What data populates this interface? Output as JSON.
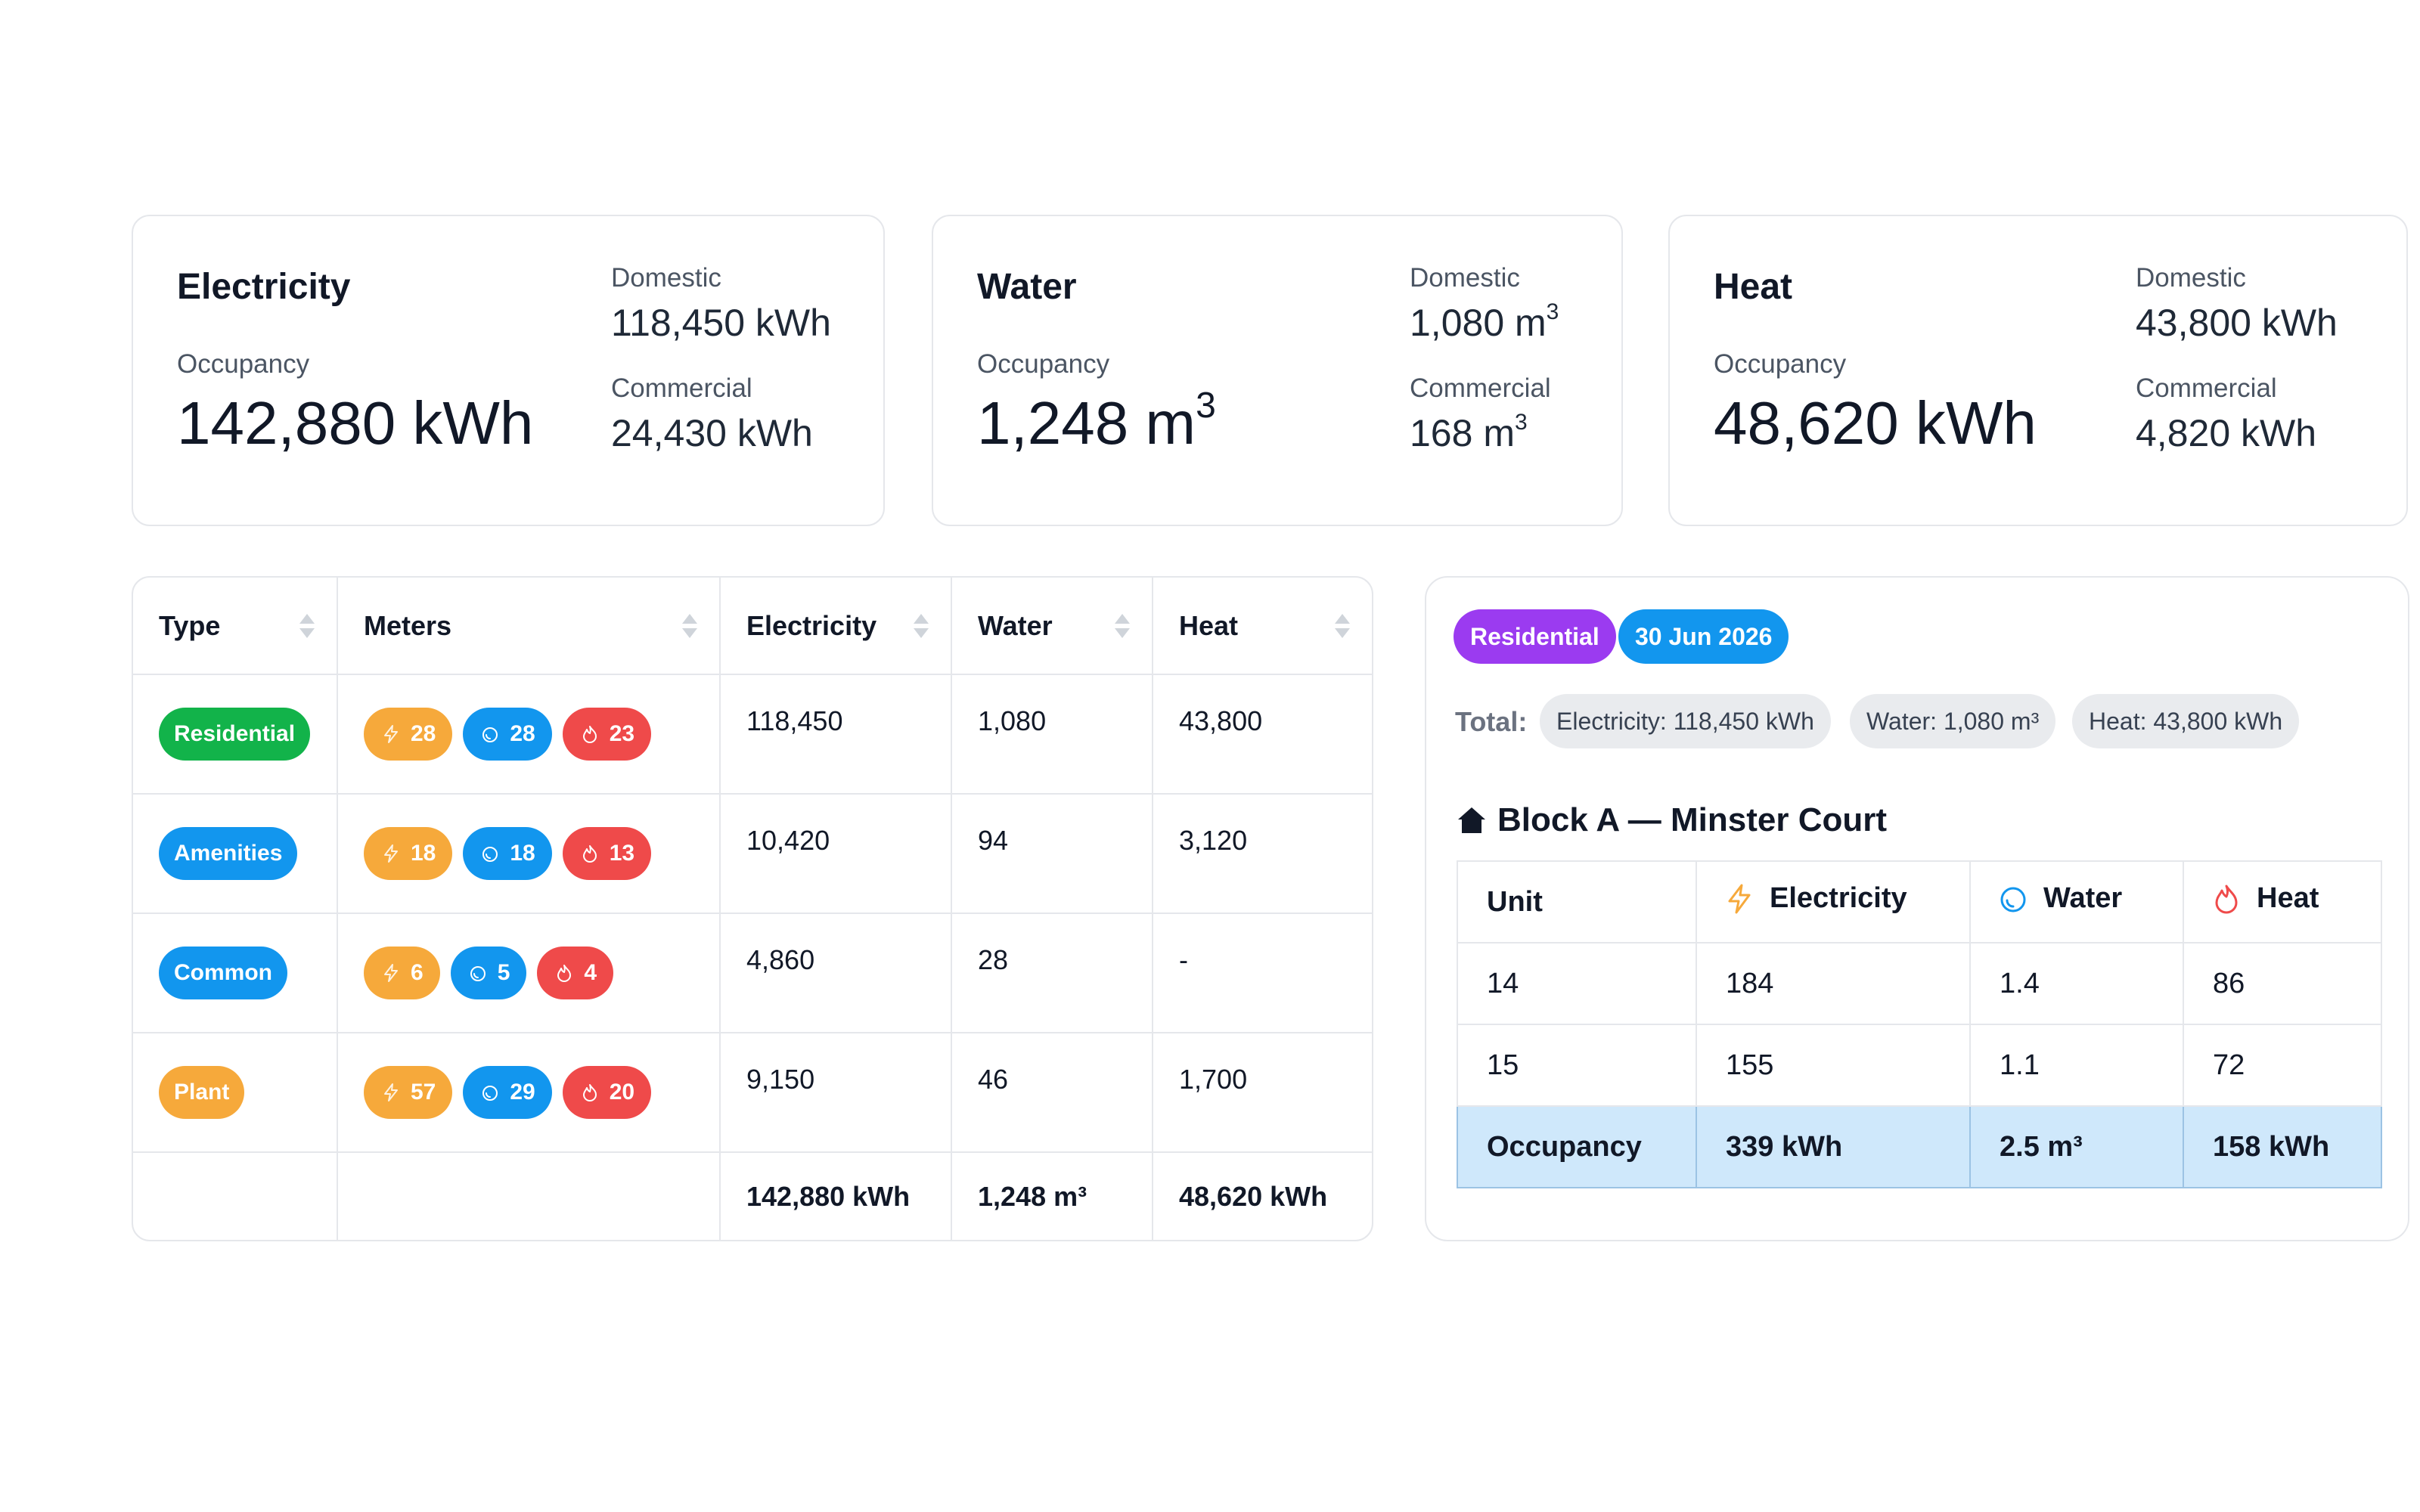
{
  "cards": {
    "electricity": {
      "title": "Electricity",
      "occupancy_label": "Occupancy",
      "occupancy_value": "142,880 kWh",
      "domestic_label": "Domestic",
      "domestic_value": "118,450 kWh",
      "commercial_label": "Commercial",
      "commercial_value": "24,430 kWh"
    },
    "water": {
      "title": "Water",
      "occupancy_label": "Occupancy",
      "occupancy_value": "1,248 m",
      "occupancy_unit_sup": "3",
      "domestic_label": "Domestic",
      "domestic_value": "1,080 m",
      "domestic_unit_sup": "3",
      "commercial_label": "Commercial",
      "commercial_value": "168 m",
      "commercial_unit_sup": "3"
    },
    "heat": {
      "title": "Heat",
      "occupancy_label": "Occupancy",
      "occupancy_value": "48,620 kWh",
      "domestic_label": "Domestic",
      "domestic_value": "43,800 kWh",
      "commercial_label": "Commercial",
      "commercial_value": "4,820 kWh"
    }
  },
  "meters_table": {
    "columns": [
      "Type",
      "Meters",
      "Electricity",
      "Water",
      "Heat"
    ],
    "rows": [
      {
        "type": "Residential",
        "type_color": "#12b34a",
        "elec_meters": "28",
        "water_meters": "28",
        "heat_meters": "23",
        "electricity": "118,450",
        "water": "1,080",
        "heat": "43,800"
      },
      {
        "type": "Amenities",
        "type_color": "#1296ee",
        "elec_meters": "18",
        "water_meters": "18",
        "heat_meters": "13",
        "electricity": "10,420",
        "water": "94",
        "heat": "3,120"
      },
      {
        "type": "Common",
        "type_color": "#1296ee",
        "elec_meters": "6",
        "water_meters": "5",
        "heat_meters": "4",
        "electricity": "4,860",
        "water": "28",
        "heat": "-"
      },
      {
        "type": "Plant",
        "type_color": "#f6a93b",
        "elec_meters": "57",
        "water_meters": "29",
        "heat_meters": "20",
        "electricity": "9,150",
        "water": "46",
        "heat": "1,700"
      }
    ],
    "totals": {
      "electricity": "142,880 kWh",
      "water": "1,248 m³",
      "heat": "48,620 kWh"
    }
  },
  "detail": {
    "category_tag": "Residential",
    "category_color": "#9b3bf0",
    "date_tag": "30 Jun 2026",
    "date_color": "#1296ee",
    "total_label": "Total:",
    "chips": [
      "Electricity: 118,450 kWh",
      "Water: 1,080 m³",
      "Heat: 43,800 kWh"
    ],
    "block_title": "Block A — Minster Court",
    "unit_table": {
      "columns": [
        "Unit",
        "Electricity",
        "Water",
        "Heat"
      ],
      "rows": [
        {
          "unit": "14",
          "electricity": "184",
          "water": "1.4",
          "heat": "86"
        },
        {
          "unit": "15",
          "electricity": "155",
          "water": "1.1",
          "heat": "72"
        }
      ],
      "occupancy": {
        "label": "Occupancy",
        "electricity": "339 kWh",
        "water": "2.5 m³",
        "heat": "158 kWh"
      }
    }
  },
  "colors": {
    "electricity": "#f6a93b",
    "water": "#1296ee",
    "heat": "#ef4a4a",
    "occupancy_row_bg": "#cfe8fb"
  },
  "icons": [
    "bolt-icon",
    "water-drop-icon",
    "flame-icon",
    "home-icon",
    "sort-icon"
  ]
}
